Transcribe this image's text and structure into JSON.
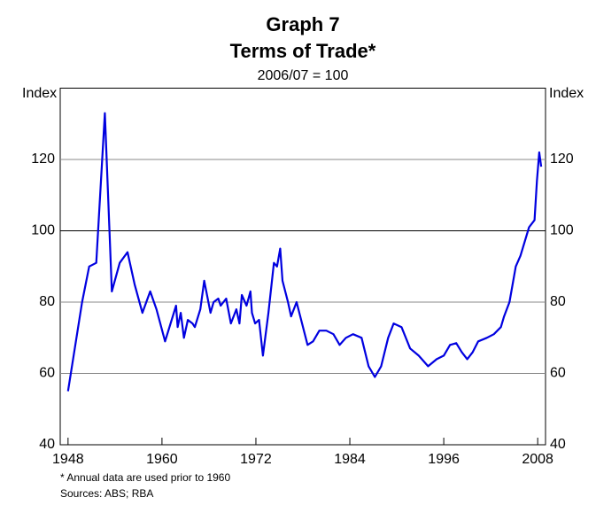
{
  "chart_data": {
    "type": "line",
    "title": "Graph 7",
    "subtitle": "Terms of Trade*",
    "units_note": "2006/07 = 100",
    "y_label": "Index",
    "y2_label": "Index",
    "footnote": "* Annual data are used prior to 1960",
    "source": "Sources: ABS; RBA",
    "xlim": [
      1947,
      2009
    ],
    "xticks": [
      1948,
      1960,
      1972,
      1984,
      1996,
      2008
    ],
    "ylim": [
      40,
      140
    ],
    "yticks": [
      40,
      60,
      80,
      100,
      120
    ],
    "grid": true,
    "series": [
      {
        "name": "Terms of Trade",
        "color": "#0000e0",
        "x": [
          1948,
          1949.8,
          1950.7,
          1951.6,
          1952.7,
          1953.6,
          1954.6,
          1955.6,
          1956.5,
          1957.5,
          1958.5,
          1959.3,
          1960.4,
          1961.8,
          1962,
          1962.4,
          1962.8,
          1963.3,
          1963.9,
          1964.2,
          1964.9,
          1965.4,
          1966.2,
          1966.6,
          1967.2,
          1967.5,
          1968.2,
          1968.8,
          1969.5,
          1969.9,
          1970.2,
          1970.8,
          1971.3,
          1971.5,
          1971.9,
          1972.4,
          1972.9,
          1973.6,
          1974.3,
          1974.7,
          1975.1,
          1975.4,
          1976.1,
          1976.5,
          1977.2,
          1978.6,
          1979.3,
          1980.1,
          1981,
          1981.9,
          1982.7,
          1983.5,
          1984.4,
          1985.5,
          1986.4,
          1987.2,
          1988,
          1988.9,
          1989.6,
          1990.6,
          1991.7,
          1992.8,
          1994,
          1995.1,
          1996,
          1996.8,
          1997.6,
          1998.3,
          1999,
          1999.7,
          2000.4,
          2001.5,
          2002.4,
          2003.3,
          2003.7,
          2004.4,
          2005.2,
          2005.8,
          2006.9,
          2007.6,
          2007.9,
          2008.2,
          2008.45
        ],
        "values": [
          55,
          80,
          90,
          91,
          133,
          83,
          91,
          94,
          85,
          77,
          83,
          78,
          69,
          79,
          73,
          77,
          70,
          75,
          74,
          73,
          78,
          86,
          77,
          80,
          81,
          79,
          81,
          74,
          78,
          74,
          82,
          79,
          83,
          77,
          74,
          75,
          65,
          77,
          91,
          90,
          95,
          86,
          80,
          76,
          80,
          68,
          69,
          72,
          72,
          71,
          68,
          70,
          71,
          70,
          62,
          59,
          62,
          70,
          74,
          73,
          67,
          65,
          62,
          64,
          65,
          68,
          68.5,
          66,
          64,
          66,
          69,
          70,
          71,
          73,
          76,
          80,
          90,
          93,
          101,
          103,
          114,
          122,
          118
        ]
      }
    ]
  }
}
